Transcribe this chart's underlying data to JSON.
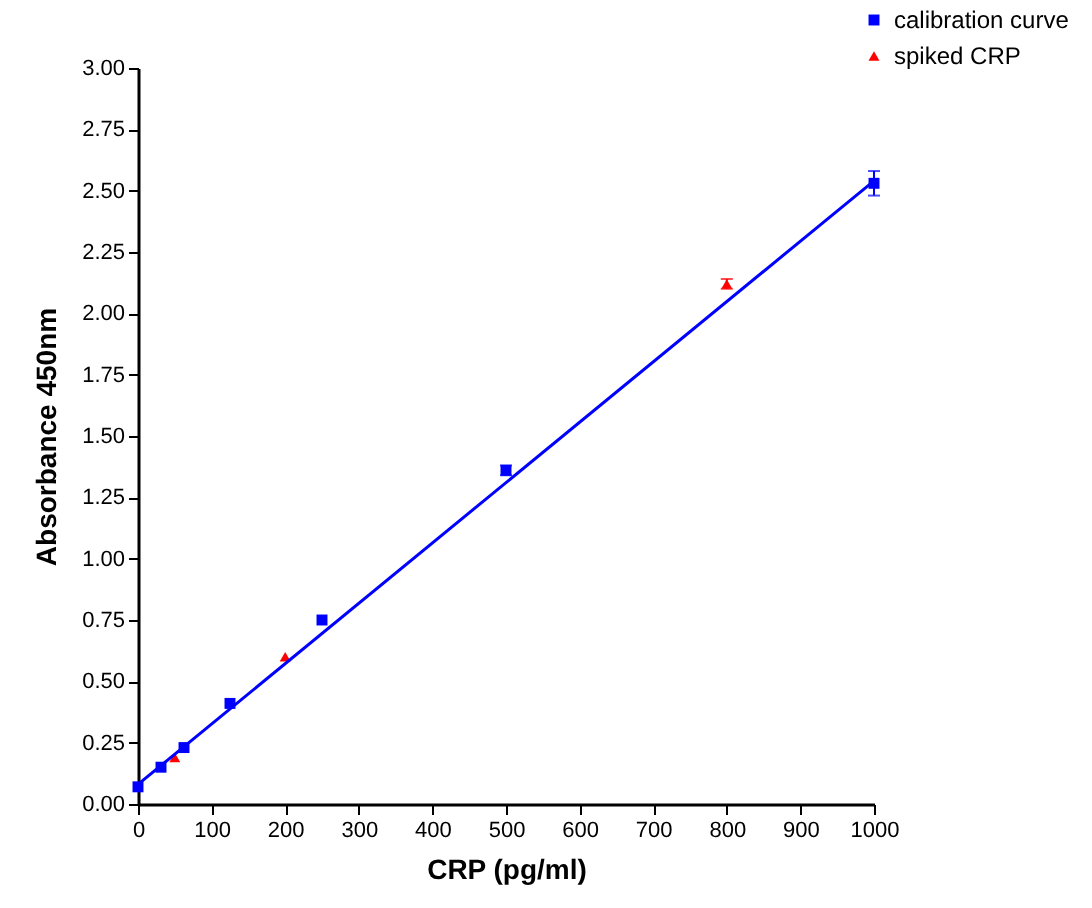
{
  "chart_data": {
    "type": "scatter",
    "xlabel": "CRP (pg/ml)",
    "ylabel": "Absorbance 450nm",
    "xlim": [
      0,
      1000
    ],
    "xticks": [
      0,
      100,
      200,
      300,
      400,
      500,
      600,
      700,
      800,
      900,
      1000
    ],
    "ylim": [
      0,
      3
    ],
    "yticks": [
      {
        "value": 0,
        "label": "0.00"
      },
      {
        "value": 0.25,
        "label": "0.25"
      },
      {
        "value": 0.5,
        "label": "0.50"
      },
      {
        "value": 0.75,
        "label": "0.75"
      },
      {
        "value": 1,
        "label": "1.00"
      },
      {
        "value": 1.25,
        "label": "1.25"
      },
      {
        "value": 1.5,
        "label": "1.50"
      },
      {
        "value": 1.75,
        "label": "1.75"
      },
      {
        "value": 2,
        "label": "2.00"
      },
      {
        "value": 2.25,
        "label": "2.25"
      },
      {
        "value": 2.5,
        "label": "2.50"
      },
      {
        "value": 2.75,
        "label": "2.75"
      },
      {
        "value": 3,
        "label": "3.00"
      }
    ],
    "grid": false,
    "legend": "top right",
    "series": [
      {
        "name": "calibration curve",
        "color": "#0000ff",
        "marker": "square",
        "x": [
          0,
          31.25,
          62.5,
          125,
          250,
          500,
          1000
        ],
        "values": [
          0.07,
          0.15,
          0.23,
          0.41,
          0.75,
          1.36,
          2.53
        ],
        "errors": [
          null,
          null,
          null,
          null,
          null,
          0.02,
          0.05
        ]
      },
      {
        "name": "spiked CRP",
        "color": "#ff0000",
        "marker": "triangle",
        "x": [
          50,
          200,
          800
        ],
        "values": [
          0.19,
          0.6,
          2.12
        ],
        "errors": [
          null,
          null,
          0.02
        ]
      },
      {
        "type": "line",
        "color": "#0000ff",
        "marker": "none",
        "x": [
          0,
          1000
        ],
        "values": [
          0.08,
          2.54
        ]
      }
    ]
  }
}
